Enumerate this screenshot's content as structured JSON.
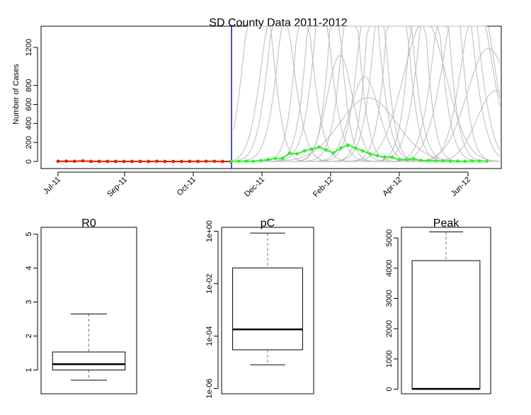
{
  "chart_data": [
    {
      "type": "line",
      "title": "SD County Data 2011-2012",
      "xlabel": "",
      "ylabel": "Number of Cases",
      "x_tick_labels": [
        "Jul-11",
        "Sep-11",
        "Oct-11",
        "Dec-11",
        "Feb-12",
        "Apr-12",
        "Jun-12"
      ],
      "y_tick_labels": [
        "0",
        "200",
        "400",
        "600",
        "800",
        "1200"
      ],
      "ylim": [
        0,
        1250
      ],
      "grid": false,
      "colors": {
        "observed": "#dd2200",
        "forecast": "#33ee33",
        "ensemble": "#bbbbbb",
        "cutoff": "#1010cc"
      },
      "series": [
        {
          "values": [
            2,
            3,
            2,
            6,
            1,
            1,
            1,
            1,
            0,
            1,
            1,
            0,
            2,
            0,
            0,
            0,
            1,
            1,
            2,
            2,
            0,
            0
          ]
        },
        {
          "values": [
            2,
            3,
            3,
            2,
            9,
            20,
            32,
            33,
            86,
            80,
            112,
            130,
            152,
            120,
            90,
            142,
            172,
            140,
            110,
            80,
            60,
            48,
            45,
            20,
            18,
            28,
            10,
            8,
            6,
            5,
            3,
            3,
            2,
            4,
            5,
            3
          ]
        }
      ]
    },
    {
      "type": "box",
      "title": "R0",
      "y_tick_labels": [
        "1",
        "2",
        "3",
        "4",
        "5"
      ],
      "ylim": [
        0.3,
        5.2
      ],
      "whisker_low": 0.7,
      "q1": 1.0,
      "median": 1.17,
      "q3": 1.53,
      "whisker_high": 2.65
    },
    {
      "type": "box",
      "title": "pC",
      "scale": "log",
      "y_tick_labels": [
        "1e-06",
        "1e-04",
        "1e-02",
        "1e+00"
      ],
      "ylim_log10": [
        -6.2,
        0.15
      ],
      "whisker_low": 8e-06,
      "q1": 3e-05,
      "median": 0.00018,
      "q3": 0.04,
      "whisker_high": 0.85
    },
    {
      "type": "box",
      "title": "Peak",
      "y_tick_labels": [
        "0",
        "1000",
        "2000",
        "3000",
        "4000",
        "5000"
      ],
      "ylim": [
        -150,
        5350
      ],
      "whisker_low": 0,
      "q1": 0,
      "median": 10,
      "q3": 4250,
      "whisker_high": 5200
    }
  ]
}
